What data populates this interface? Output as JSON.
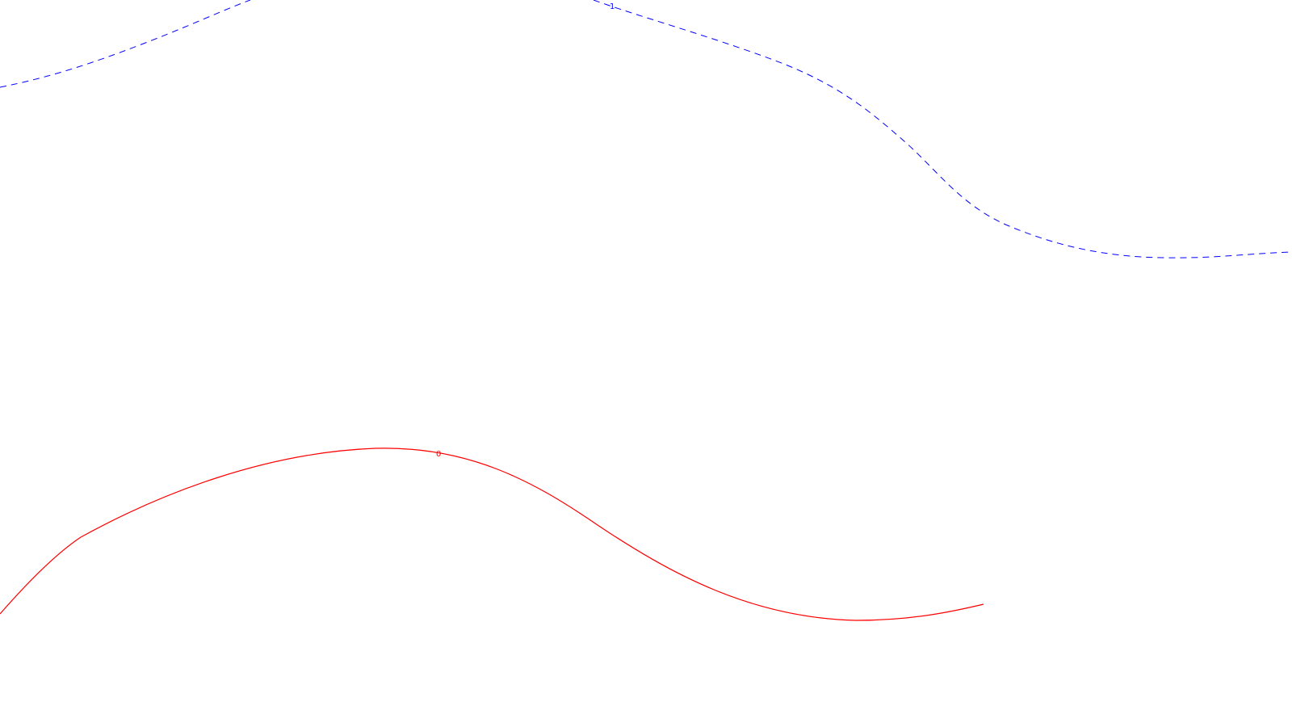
{
  "curves": [
    {
      "id": "curve-1",
      "label": "1",
      "color": "#0000ff",
      "style": "dashed"
    },
    {
      "id": "curve-0",
      "label": "0",
      "color": "#ff0000",
      "style": "solid"
    }
  ]
}
